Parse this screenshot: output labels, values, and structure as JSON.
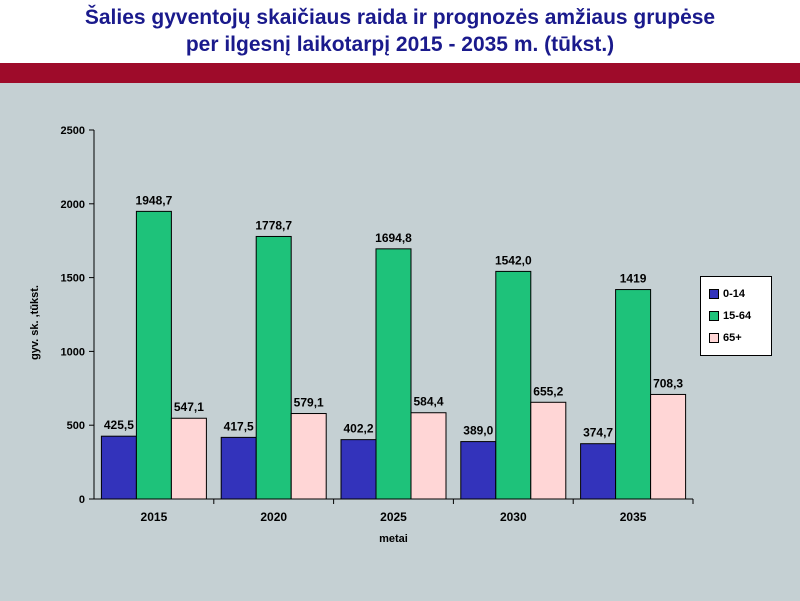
{
  "title": {
    "line1": "Šalies gyventojų skaičiaus raida ir prognozės amžiaus grupėse",
    "line2": "per ilgesnį laikotarpį 2015 - 2035 m. (tūkst.)"
  },
  "colors": {
    "band": "#9e0b2a",
    "background": "#c5d0d3",
    "title": "#1a1a8c"
  },
  "chart_data": {
    "type": "bar",
    "categories": [
      "2015",
      "2020",
      "2025",
      "2030",
      "2035"
    ],
    "series": [
      {
        "name": "0-14",
        "color": "#3333bb",
        "values": [
          425.5,
          417.5,
          402.2,
          389.0,
          374.7
        ],
        "labels": [
          "425,5",
          "417,5",
          "402,2",
          "389,0",
          "374,7"
        ]
      },
      {
        "name": "15-64",
        "color": "#1ec27a",
        "values": [
          1948.7,
          1778.7,
          1694.8,
          1542.0,
          1419
        ],
        "labels": [
          "1948,7",
          "1778,7",
          "1694,8",
          "1542,0",
          "1419"
        ]
      },
      {
        "name": "65+",
        "color": "#ffd6d6",
        "values": [
          547.1,
          579.1,
          584.4,
          655.2,
          708.3
        ],
        "labels": [
          "547,1",
          "579,1",
          "584,4",
          "655,2",
          "708,3"
        ]
      }
    ],
    "xlabel": "metai",
    "ylabel": "gyv. sk. ,tūkst.",
    "ylim": [
      0,
      2500
    ],
    "yticks": [
      "0",
      "500",
      "1000",
      "1500",
      "2000",
      "2500"
    ],
    "grid": false,
    "legend_position": "right"
  }
}
